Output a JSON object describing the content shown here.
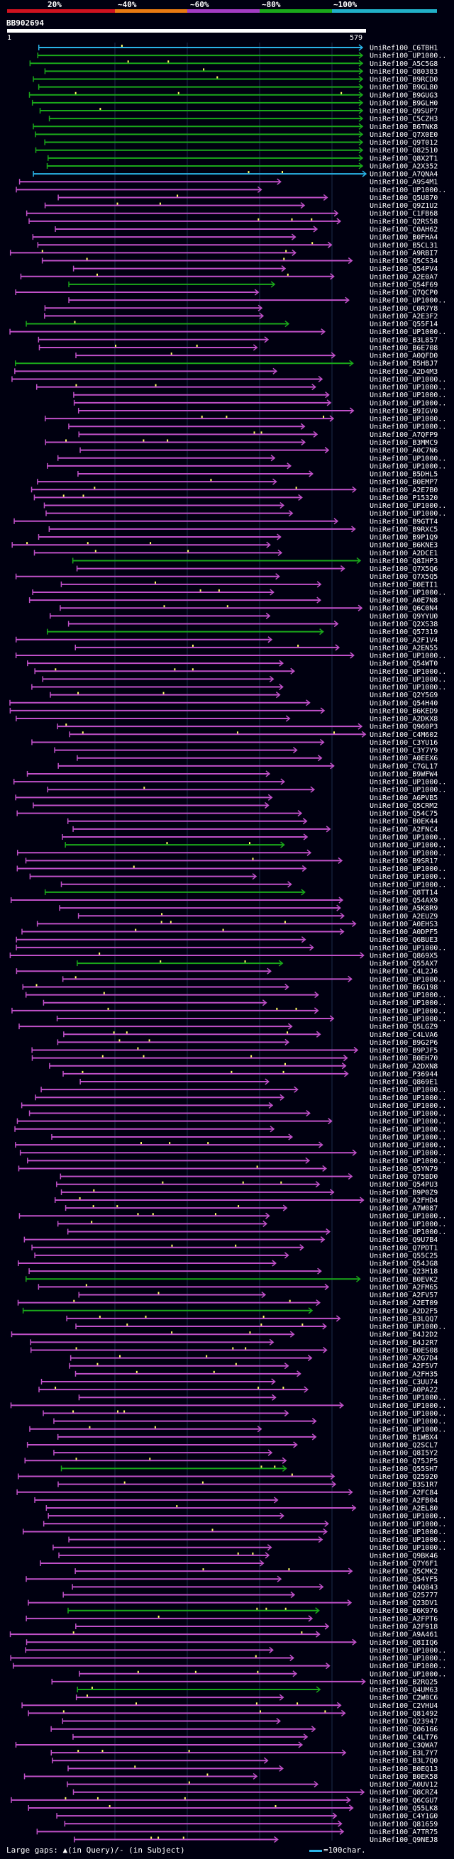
{
  "query": {
    "id": "BB902694",
    "start": "1",
    "end": "579"
  },
  "scale": {
    "labels": [
      "20%",
      "~40%",
      "~60%",
      "~80%",
      "~100%"
    ],
    "colors": [
      "#d0121f",
      "#e87a12",
      "#a43cc4",
      "#1aa81a",
      "#21b0c8"
    ]
  },
  "colors": {
    "high": "#1aa81a",
    "mid": "#c050c8",
    "top": "#2ab4e8",
    "gap": "#ffff66",
    "grid": "#1c2b4d"
  },
  "footer": {
    "large_gaps": "Large gaps: ▲(in Query)/- (in Subject)",
    "legend": "=100char."
  },
  "labels": [
    "UniRef100_C6TBH1",
    "UniRef100_UP1000..",
    "UniRef100_A5C5G8",
    "UniRef100_O80383",
    "UniRef100_B9RCD0",
    "UniRef100_B9GL80",
    "UniRef100_B9GUG3",
    "UniRef100_B9GLH0",
    "UniRef100_Q9SUP7",
    "UniRef100_C5CZH3",
    "UniRef100_B6TNK8",
    "UniRef100_Q7X0E0",
    "UniRef100_Q9T012",
    "UniRef100_O82510",
    "UniRef100_Q8X2T1",
    "UniRef100_A2X352",
    "UniRef100_A7QNA4",
    "UniRef100_A9S4M1",
    "UniRef100_UP1000..",
    "UniRef100_Q5U870",
    "UniRef100_Q9Z1U2",
    "UniRef100_C1FB68",
    "UniRef100_Q2RS58",
    "UniRef100_C0AH62",
    "UniRef100_B0FHA4",
    "UniRef100_B5CL31",
    "UniRef100_A9RBI7",
    "UniRef100_Q5CS34",
    "UniRef100_Q54PV4",
    "UniRef100_A2E0A7",
    "UniRef100_Q54F69",
    "UniRef100_Q7QCP0",
    "UniRef100_UP1000..",
    "UniRef100_C0R7Y8",
    "UniRef100_A2E3F2",
    "UniRef100_Q55F14",
    "UniRef100_UP1000..",
    "UniRef100_B3L857",
    "UniRef100_B6E708",
    "UniRef100_A0QFD0",
    "UniRef100_B5HBJ7",
    "UniRef100_A2D4M3",
    "UniRef100_UP1000..",
    "UniRef100_UP1000..",
    "UniRef100_UP1000..",
    "UniRef100_UP1000..",
    "UniRef100_B9IGV0",
    "UniRef100_UP1000..",
    "UniRef100_UP1000..",
    "UniRef100_A7QFP9",
    "UniRef100_B3MMC9",
    "UniRef100_A0C7N6",
    "UniRef100_UP1000..",
    "UniRef100_UP1000..",
    "UniRef100_B5DHL5",
    "UniRef100_B0EMP7",
    "UniRef100_A2E7B0",
    "UniRef100_P15320",
    "UniRef100_UP1000..",
    "UniRef100_UP1000..",
    "UniRef100_B9GTT4",
    "UniRef100_B9RXC5",
    "UniRef100_B9P1Q9",
    "UniRef100_B6KNE3",
    "UniRef100_A2DCE1",
    "UniRef100_Q8IHP3",
    "UniRef100_Q7X5Q6",
    "UniRef100_Q7X5Q5",
    "UniRef100_B0ETI1",
    "UniRef100_UP1000..",
    "UniRef100_A0E7N8",
    "UniRef100_Q6C0N4",
    "UniRef100_Q9YYU0",
    "UniRef100_Q2XS38",
    "UniRef100_Q57319",
    "UniRef100_A2F1V4",
    "UniRef100_A2EN55",
    "UniRef100_UP1000..",
    "UniRef100_Q54WT0",
    "UniRef100_UP1000..",
    "UniRef100_UP1000..",
    "UniRef100_UP1000..",
    "UniRef100_Q2Y5G9",
    "UniRef100_Q54H40",
    "UniRef100_B6KED9",
    "UniRef100_A2DKX8",
    "UniRef100_Q960P3",
    "UniRef100_C4M602",
    "UniRef100_C3YU16",
    "UniRef100_C3Y7Y9",
    "UniRef100_A0EEX6",
    "UniRef100_C7GL17",
    "UniRef100_B9WFW4",
    "UniRef100_UP1000..",
    "UniRef100_UP1000..",
    "UniRef100_A6PVB5",
    "UniRef100_Q5CRM2",
    "UniRef100_Q54C75",
    "UniRef100_B0EK44",
    "UniRef100_A2FNC4",
    "UniRef100_UP1000..",
    "UniRef100_UP1000..",
    "UniRef100_UP1000..",
    "UniRef100_B9SR17",
    "UniRef100_UP1000..",
    "UniRef100_UP1000..",
    "UniRef100_UP1000..",
    "UniRef100_Q8TT14",
    "UniRef100_Q54AX9",
    "UniRef100_A5K8R9",
    "UniRef100_A2EUZ9",
    "UniRef100_A0EHS3",
    "UniRef100_A0DPF5",
    "UniRef100_Q6BUE3",
    "UniRef100_UP1000..",
    "UniRef100_Q869X5",
    "UniRef100_Q55AX7",
    "UniRef100_C4L2J6",
    "UniRef100_UP1000..",
    "UniRef100_B6G198",
    "UniRef100_UP1000..",
    "UniRef100_UP1000..",
    "UniRef100_UP1000..",
    "UniRef100_UP1000..",
    "UniRef100_Q5LGZ9",
    "UniRef100_C4LVA6",
    "UniRef100_B9G2P6",
    "UniRef100_B9PJF5",
    "UniRef100_B0EH70",
    "UniRef100_A2DXN8",
    "UniRef100_P36944",
    "UniRef100_Q869E1",
    "UniRef100_UP1000..",
    "UniRef100_UP1000..",
    "UniRef100_UP1000..",
    "UniRef100_UP1000..",
    "UniRef100_UP1000..",
    "UniRef100_UP1000..",
    "UniRef100_UP1000..",
    "UniRef100_UP1000..",
    "UniRef100_UP1000..",
    "UniRef100_UP1000..",
    "UniRef100_Q5YN79",
    "UniRef100_Q75BD0",
    "UniRef100_Q54PU3",
    "UniRef100_B9P0Z9",
    "UniRef100_A2FHD4",
    "UniRef100_A7W087",
    "UniRef100_UP1000..",
    "UniRef100_UP1000..",
    "UniRef100_UP1000..",
    "UniRef100_Q9U7B4",
    "UniRef100_Q7PDT1",
    "UniRef100_Q55C25",
    "UniRef100_Q54JG8",
    "UniRef100_Q23H18",
    "UniRef100_B0EVK2",
    "UniRef100_A2FM65",
    "UniRef100_A2FV57",
    "UniRef100_A2ET09",
    "UniRef100_A2D2F5",
    "UniRef100_B3LQQ7",
    "UniRef100_UP1000..",
    "UniRef100_B4J2D2",
    "UniRef100_B4J2R7",
    "UniRef100_B0ES08",
    "UniRef100_A2G7D4",
    "UniRef100_A2F5V7",
    "UniRef100_A2FH35",
    "UniRef100_C3UU74",
    "UniRef100_A0PA22",
    "UniRef100_UP1000..",
    "UniRef100_UP1000..",
    "UniRef100_UP1000..",
    "UniRef100_UP1000..",
    "UniRef100_UP1000..",
    "UniRef100_B1WBX4",
    "UniRef100_Q2SCL7",
    "UniRef100_Q8I5Y2",
    "UniRef100_Q75JP5",
    "UniRef100_Q55SH7",
    "UniRef100_Q25920",
    "UniRef100_B3S1R7",
    "UniRef100_A2FC84",
    "UniRef100_A2FB04",
    "UniRef100_A2EL80",
    "UniRef100_UP1000..",
    "UniRef100_UP1000..",
    "UniRef100_UP1000..",
    "UniRef100_UP1000..",
    "UniRef100_UP1000..",
    "UniRef100_Q9BK46",
    "UniRef100_Q7Y6F1",
    "UniRef100_Q5CMK2",
    "UniRef100_Q54YF5",
    "UniRef100_Q4Q843",
    "UniRef100_Q25777",
    "UniRef100_Q23DV1",
    "UniRef100_B6K976",
    "UniRef100_A2FPT6",
    "UniRef100_A2F918",
    "UniRef100_A9A461",
    "UniRef100_Q8IIQ6",
    "UniRef100_UP1000..",
    "UniRef100_UP1000..",
    "UniRef100_UP1000..",
    "UniRef100_UP1000..",
    "UniRef100_B2RQ25",
    "UniRef100_Q4UM63",
    "UniRef100_C2W0C6",
    "UniRef100_C2VHU4",
    "UniRef100_Q81492",
    "UniRef100_Q23947",
    "UniRef100_Q06166",
    "UniRef100_C4LT76",
    "UniRef100_C3QWA7",
    "UniRef100_B3L7Y7",
    "UniRef100_B3L7Q0",
    "UniRef100_B0EQ13",
    "UniRef100_B0EK58",
    "UniRef100_A0UV12",
    "UniRef100_Q8CRZ4",
    "UniRef100_Q6CGU7",
    "UniRef100_Q55LK8",
    "UniRef100_C4Y1G0",
    "UniRef100_Q81659",
    "UniRef100_A7TR75",
    "UniRef100_Q9NEJ8"
  ]
}
